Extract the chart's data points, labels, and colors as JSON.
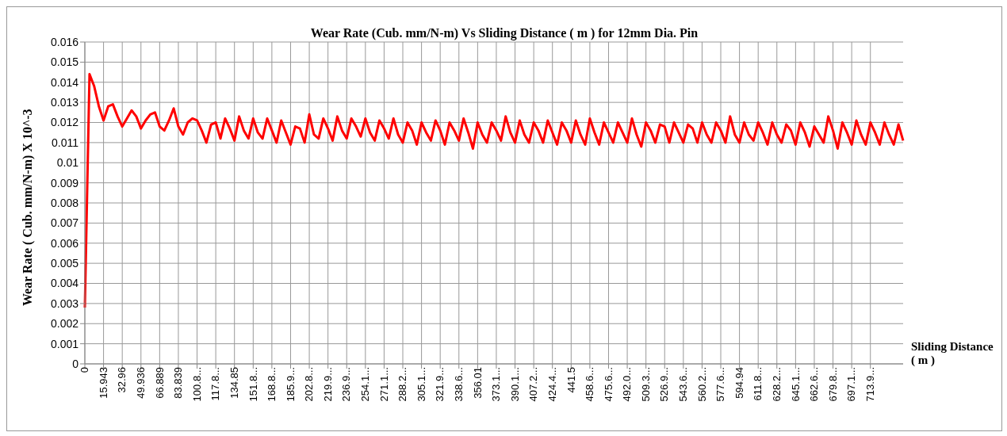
{
  "chart_data": {
    "type": "line",
    "title": "Wear Rate (Cub. mm/N-m) Vs Sliding Distance ( m ) for 12mm Dia. Pin",
    "xlabel": "Sliding Distance ( m )",
    "ylabel": "Wear Rate ( Cub. mm/N-m) X 10^-3",
    "categories": [
      "0",
      null,
      null,
      null,
      "15.943",
      null,
      null,
      null,
      "32.96",
      null,
      null,
      null,
      "49.936",
      null,
      null,
      null,
      "66.889",
      null,
      null,
      null,
      "83.839",
      null,
      null,
      null,
      "100.8...",
      null,
      null,
      null,
      "117.8...",
      null,
      null,
      null,
      "134.85",
      null,
      null,
      null,
      "151.8...",
      null,
      null,
      null,
      "168.8...",
      null,
      null,
      null,
      "185.9...",
      null,
      null,
      null,
      "202.8...",
      null,
      null,
      null,
      "219.9...",
      null,
      null,
      null,
      "236.9...",
      null,
      null,
      null,
      "254.1...",
      null,
      null,
      null,
      "271.1...",
      null,
      null,
      null,
      "288.2...",
      null,
      null,
      null,
      "305.1...",
      null,
      null,
      null,
      "321.9...",
      null,
      null,
      null,
      "338.6...",
      null,
      null,
      null,
      "356.01",
      null,
      null,
      null,
      "373.1...",
      null,
      null,
      null,
      "390.1...",
      null,
      null,
      null,
      "407.2...",
      null,
      null,
      null,
      "424.4...",
      null,
      null,
      null,
      "441.5",
      null,
      null,
      null,
      "458.6...",
      null,
      null,
      null,
      "475.6...",
      null,
      null,
      null,
      "492.0...",
      null,
      null,
      null,
      "509.3...",
      null,
      null,
      null,
      "526.9...",
      null,
      null,
      null,
      "543.6...",
      null,
      null,
      null,
      "560.2...",
      null,
      null,
      null,
      "577.6...",
      null,
      null,
      null,
      "594.94",
      null,
      null,
      null,
      "611.8...",
      null,
      null,
      null,
      "628.2...",
      null,
      null,
      null,
      "645.1...",
      null,
      null,
      null,
      "662.6...",
      null,
      null,
      null,
      "679.8...",
      null,
      null,
      null,
      "697.1...",
      null,
      null,
      null,
      "713.9...",
      null,
      null,
      null,
      null,
      null,
      null,
      null
    ],
    "series": [
      {
        "color": "#ff0000",
        "values": [
          0.0028,
          0.0144,
          0.0138,
          0.0128,
          0.0121,
          0.0128,
          0.0129,
          0.0123,
          0.0118,
          0.0122,
          0.0126,
          0.0123,
          0.0117,
          0.0121,
          0.0124,
          0.0125,
          0.0118,
          0.0116,
          0.0121,
          0.0127,
          0.0118,
          0.0114,
          0.012,
          0.0122,
          0.0121,
          0.0116,
          0.011,
          0.0119,
          0.012,
          0.0112,
          0.0122,
          0.0117,
          0.0111,
          0.0123,
          0.0116,
          0.0112,
          0.0122,
          0.0115,
          0.0112,
          0.0122,
          0.0116,
          0.011,
          0.0121,
          0.0115,
          0.0109,
          0.0118,
          0.0117,
          0.011,
          0.0124,
          0.0114,
          0.0112,
          0.0122,
          0.0117,
          0.0111,
          0.0123,
          0.0116,
          0.0112,
          0.0122,
          0.0118,
          0.0113,
          0.0122,
          0.0115,
          0.0111,
          0.0121,
          0.0117,
          0.0112,
          0.0122,
          0.0114,
          0.011,
          0.012,
          0.0116,
          0.0109,
          0.012,
          0.0115,
          0.0111,
          0.0121,
          0.0116,
          0.0109,
          0.012,
          0.0116,
          0.0111,
          0.0122,
          0.0115,
          0.0107,
          0.012,
          0.0114,
          0.011,
          0.012,
          0.0116,
          0.0111,
          0.0123,
          0.0115,
          0.011,
          0.0121,
          0.0114,
          0.011,
          0.012,
          0.0116,
          0.011,
          0.0121,
          0.0115,
          0.0109,
          0.012,
          0.0116,
          0.011,
          0.0121,
          0.0114,
          0.0109,
          0.0122,
          0.0115,
          0.0109,
          0.012,
          0.0115,
          0.011,
          0.012,
          0.0115,
          0.011,
          0.0122,
          0.0114,
          0.0108,
          0.012,
          0.0116,
          0.011,
          0.0119,
          0.0118,
          0.011,
          0.012,
          0.0115,
          0.011,
          0.0119,
          0.0117,
          0.011,
          0.012,
          0.0114,
          0.011,
          0.012,
          0.0116,
          0.011,
          0.0123,
          0.0114,
          0.011,
          0.012,
          0.0114,
          0.0111,
          0.012,
          0.0115,
          0.0109,
          0.012,
          0.0114,
          0.011,
          0.0119,
          0.0116,
          0.0109,
          0.012,
          0.0115,
          0.0108,
          0.0118,
          0.0114,
          0.011,
          0.0123,
          0.0116,
          0.0107,
          0.012,
          0.0115,
          0.0109,
          0.0121,
          0.0114,
          0.0109,
          0.012,
          0.0115,
          0.0109,
          0.012,
          0.0114,
          0.0109,
          0.0119,
          0.0111
        ]
      }
    ],
    "ylim": [
      0,
      0.016
    ],
    "yticks": [
      0,
      0.001,
      0.002,
      0.003,
      0.004,
      0.005,
      0.006,
      0.007,
      0.008,
      0.009,
      0.01,
      0.011,
      0.012,
      0.013,
      0.014,
      0.015,
      0.016
    ],
    "grid": true,
    "marker": "none",
    "line_style": "solid"
  }
}
